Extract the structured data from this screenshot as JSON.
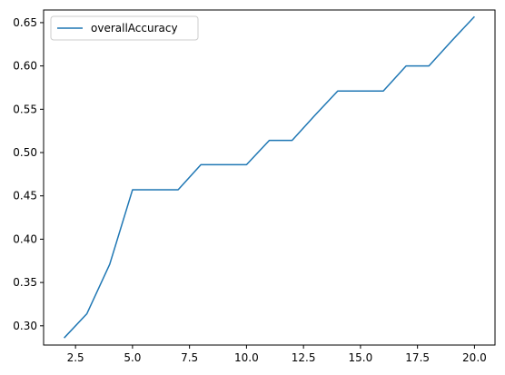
{
  "chart_data": {
    "type": "line",
    "title": "",
    "xlabel": "",
    "ylabel": "",
    "xlim": [
      1.1,
      20.9
    ],
    "ylim": [
      0.2778,
      0.6646
    ],
    "x_ticks": [
      2.5,
      5.0,
      7.5,
      10.0,
      12.5,
      15.0,
      17.5,
      20.0
    ],
    "x_tick_labels": [
      "2.5",
      "5.0",
      "7.5",
      "10.0",
      "12.5",
      "15.0",
      "17.5",
      "20.0"
    ],
    "y_ticks": [
      0.3,
      0.35,
      0.4,
      0.45,
      0.5,
      0.55,
      0.6,
      0.65
    ],
    "y_tick_labels": [
      "0.30",
      "0.35",
      "0.40",
      "0.45",
      "0.50",
      "0.55",
      "0.60",
      "0.65"
    ],
    "grid": false,
    "legend_position": "upper-left",
    "series": [
      {
        "name": "overallAccuracy",
        "color": "#1f77b4",
        "x": [
          2,
          3,
          4,
          5,
          6,
          7,
          8,
          9,
          10,
          11,
          12,
          13,
          14,
          15,
          16,
          17,
          18,
          19,
          20
        ],
        "y": [
          0.286,
          0.314,
          0.371,
          0.457,
          0.457,
          0.457,
          0.486,
          0.486,
          0.486,
          0.514,
          0.514,
          0.543,
          0.571,
          0.571,
          0.571,
          0.6,
          0.6,
          0.629,
          0.657
        ]
      }
    ]
  }
}
